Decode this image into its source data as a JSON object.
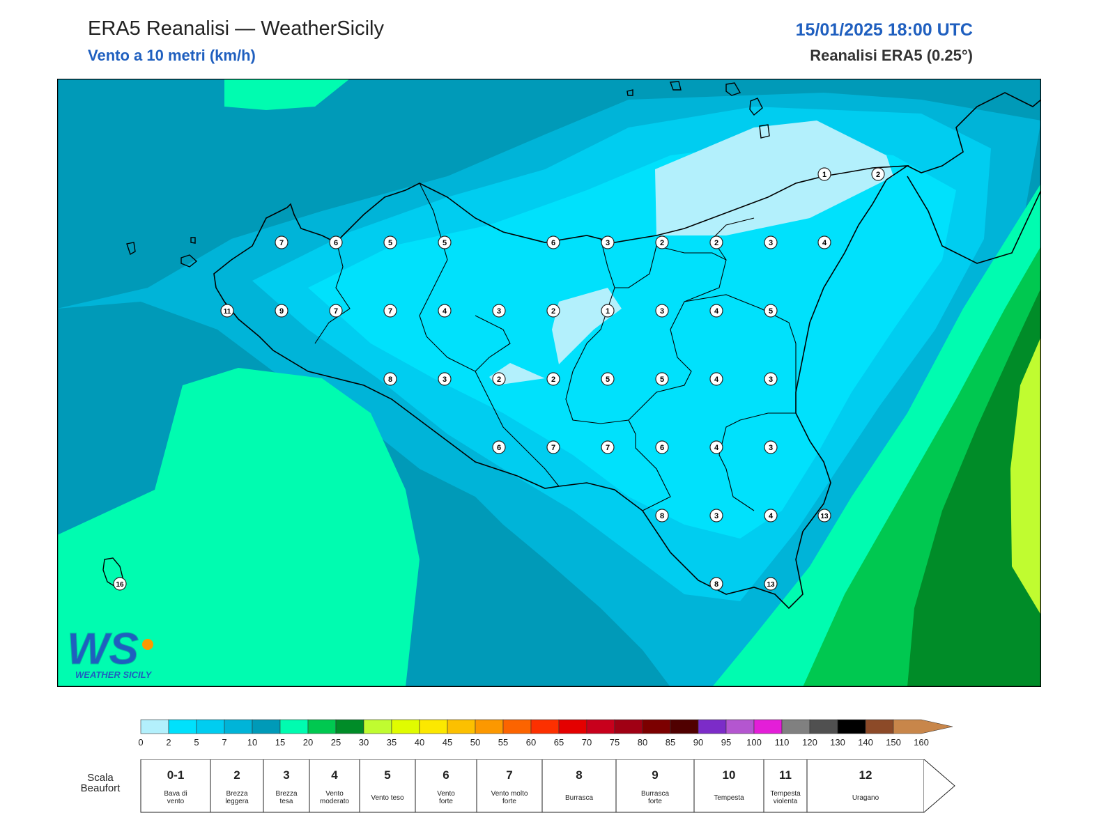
{
  "header": {
    "title": "ERA5 Reanalisi — WeatherSicily",
    "subtitle": "Vento a 10 metri (km/h)",
    "datetime": "15/01/2025 18:00 UTC",
    "source": "Reanalisi ERA5 (0.25°)"
  },
  "logo": {
    "text": "WEATHER SICILY",
    "mark": "WS"
  },
  "station_values": [
    {
      "id": "a1",
      "v": "1"
    },
    {
      "id": "a2",
      "v": "2"
    },
    {
      "id": "r1c1",
      "v": "7"
    },
    {
      "id": "r1c2",
      "v": "6"
    },
    {
      "id": "r1c3",
      "v": "5"
    },
    {
      "id": "r1c4",
      "v": "5"
    },
    {
      "id": "r1c5",
      "v": "6"
    },
    {
      "id": "r1c6",
      "v": "3"
    },
    {
      "id": "r1c7",
      "v": "2"
    },
    {
      "id": "r1c8",
      "v": "2"
    },
    {
      "id": "r1c9",
      "v": "3"
    },
    {
      "id": "r1c10",
      "v": "4"
    },
    {
      "id": "r2c0",
      "v": "11"
    },
    {
      "id": "r2c1",
      "v": "9"
    },
    {
      "id": "r2c2",
      "v": "7"
    },
    {
      "id": "r2c3",
      "v": "7"
    },
    {
      "id": "r2c4",
      "v": "4"
    },
    {
      "id": "r2c5",
      "v": "3"
    },
    {
      "id": "r2c6",
      "v": "2"
    },
    {
      "id": "r2c7",
      "v": "1"
    },
    {
      "id": "r2c8",
      "v": "3"
    },
    {
      "id": "r2c9",
      "v": "4"
    },
    {
      "id": "r2c10",
      "v": "5"
    },
    {
      "id": "r3c1",
      "v": "8"
    },
    {
      "id": "r3c2",
      "v": "3"
    },
    {
      "id": "r3c3",
      "v": "2"
    },
    {
      "id": "r3c4",
      "v": "2"
    },
    {
      "id": "r3c5",
      "v": "5"
    },
    {
      "id": "r3c6",
      "v": "5"
    },
    {
      "id": "r3c7",
      "v": "4"
    },
    {
      "id": "r3c8",
      "v": "3"
    },
    {
      "id": "r4c1",
      "v": "6"
    },
    {
      "id": "r4c2",
      "v": "7"
    },
    {
      "id": "r4c3",
      "v": "7"
    },
    {
      "id": "r4c4",
      "v": "6"
    },
    {
      "id": "r4c5",
      "v": "4"
    },
    {
      "id": "r4c6",
      "v": "3"
    },
    {
      "id": "r5c1",
      "v": "8"
    },
    {
      "id": "r5c2",
      "v": "3"
    },
    {
      "id": "r5c3",
      "v": "4"
    },
    {
      "id": "r5c4",
      "v": "13"
    },
    {
      "id": "r6c1",
      "v": "8"
    },
    {
      "id": "r6c2",
      "v": "13"
    },
    {
      "id": "pant",
      "v": "16"
    }
  ],
  "colorbar": {
    "ticks": [
      "0",
      "2",
      "5",
      "7",
      "10",
      "15",
      "20",
      "25",
      "30",
      "35",
      "40",
      "45",
      "50",
      "55",
      "60",
      "65",
      "70",
      "75",
      "80",
      "85",
      "90",
      "95",
      "100",
      "110",
      "120",
      "130",
      "140",
      "150",
      "160"
    ],
    "colors": [
      "#b3f0fc",
      "#00e1fc",
      "#00cdf0",
      "#00b4d8",
      "#009ab8",
      "#00fcb0",
      "#00c850",
      "#008c28",
      "#c0fc30",
      "#e0fc00",
      "#fce800",
      "#fcc000",
      "#fc9800",
      "#fc6400",
      "#fc3000",
      "#e40000",
      "#c8001c",
      "#a00014",
      "#7c0000",
      "#500000",
      "#7c2cc8",
      "#b456d0",
      "#e41ed8",
      "#808080",
      "#505050",
      "#000000",
      "#8c4a28",
      "#c8864a"
    ]
  },
  "beaufort": {
    "label": "Scala Beaufort",
    "cells": [
      {
        "force": "0-1",
        "name": "Bava di vento"
      },
      {
        "force": "2",
        "name": "Brezza leggera"
      },
      {
        "force": "3",
        "name": "Brezza tesa"
      },
      {
        "force": "4",
        "name": "Vento moderato"
      },
      {
        "force": "5",
        "name": "Vento teso"
      },
      {
        "force": "6",
        "name": "Vento forte"
      },
      {
        "force": "7",
        "name": "Vento molto forte"
      },
      {
        "force": "8",
        "name": "Burrasca"
      },
      {
        "force": "9",
        "name": "Burrasca forte"
      },
      {
        "force": "10",
        "name": "Tempesta"
      },
      {
        "force": "11",
        "name": "Tempesta violenta"
      },
      {
        "force": "12",
        "name": "Uragano"
      }
    ]
  }
}
